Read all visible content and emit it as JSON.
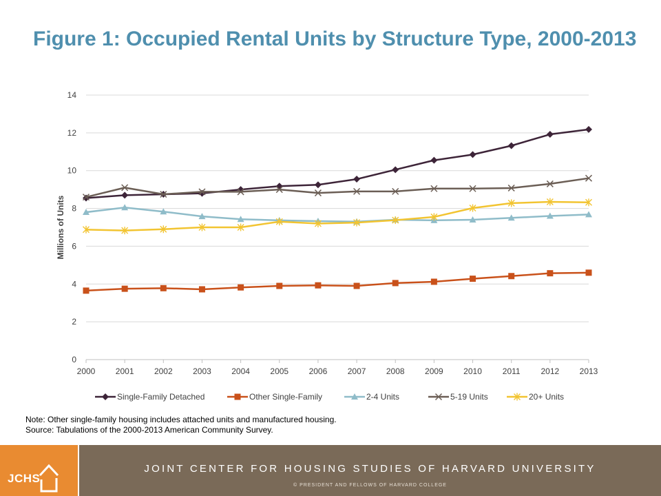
{
  "title": "Figure 1: Occupied Rental Units by Structure Type, 2000-2013",
  "notes": {
    "line1": "Note: Other single-family housing includes attached units and manufactured housing.",
    "line2": "Source: Tabulations of the 2000-2013 American Community Survey."
  },
  "footer": {
    "logo": "JCHS",
    "org": "JOINT CENTER FOR HOUSING STUDIES OF HARVARD UNIVERSITY",
    "copyright": "© PRESIDENT AND FELLOWS OF HARVARD COLLEGE"
  },
  "colors": {
    "title": "#4f8fae",
    "footer_logo_bg": "#e98b31",
    "footer_bar_bg": "#7a6a58"
  },
  "chart_data": {
    "type": "line",
    "title": "",
    "xlabel": "",
    "ylabel": "Millions of Units",
    "ylim": [
      0,
      14
    ],
    "yticks": [
      0,
      2,
      4,
      6,
      8,
      10,
      12,
      14
    ],
    "grid": true,
    "legend_position": "bottom",
    "x": [
      "2000",
      "2001",
      "2002",
      "2003",
      "2004",
      "2005",
      "2006",
      "2007",
      "2008",
      "2009",
      "2010",
      "2011",
      "2012",
      "2013"
    ],
    "series": [
      {
        "name": "Single-Family Detached",
        "color": "#3d2438",
        "marker": "diamond",
        "values": [
          8.55,
          8.7,
          8.75,
          8.8,
          9.0,
          9.18,
          9.25,
          9.55,
          10.05,
          10.55,
          10.85,
          11.32,
          11.92,
          12.18
        ]
      },
      {
        "name": "Other Single-Family",
        "color": "#c9511a",
        "marker": "square",
        "values": [
          3.65,
          3.75,
          3.78,
          3.72,
          3.82,
          3.9,
          3.93,
          3.9,
          4.05,
          4.12,
          4.28,
          4.42,
          4.57,
          4.6
        ]
      },
      {
        "name": "2-4 Units",
        "color": "#8fbcc9",
        "marker": "triangle",
        "values": [
          7.8,
          8.05,
          7.83,
          7.58,
          7.43,
          7.37,
          7.33,
          7.3,
          7.4,
          7.37,
          7.4,
          7.5,
          7.6,
          7.68
        ]
      },
      {
        "name": "5-19 Units",
        "color": "#6b5e55",
        "marker": "x",
        "values": [
          8.6,
          9.1,
          8.75,
          8.88,
          8.88,
          9.0,
          8.82,
          8.9,
          8.9,
          9.05,
          9.05,
          9.08,
          9.3,
          9.6
        ]
      },
      {
        "name": "20+ Units",
        "color": "#f2c431",
        "marker": "star",
        "values": [
          6.88,
          6.83,
          6.9,
          7.0,
          7.0,
          7.3,
          7.2,
          7.25,
          7.38,
          7.55,
          8.02,
          8.28,
          8.35,
          8.32
        ]
      }
    ]
  }
}
